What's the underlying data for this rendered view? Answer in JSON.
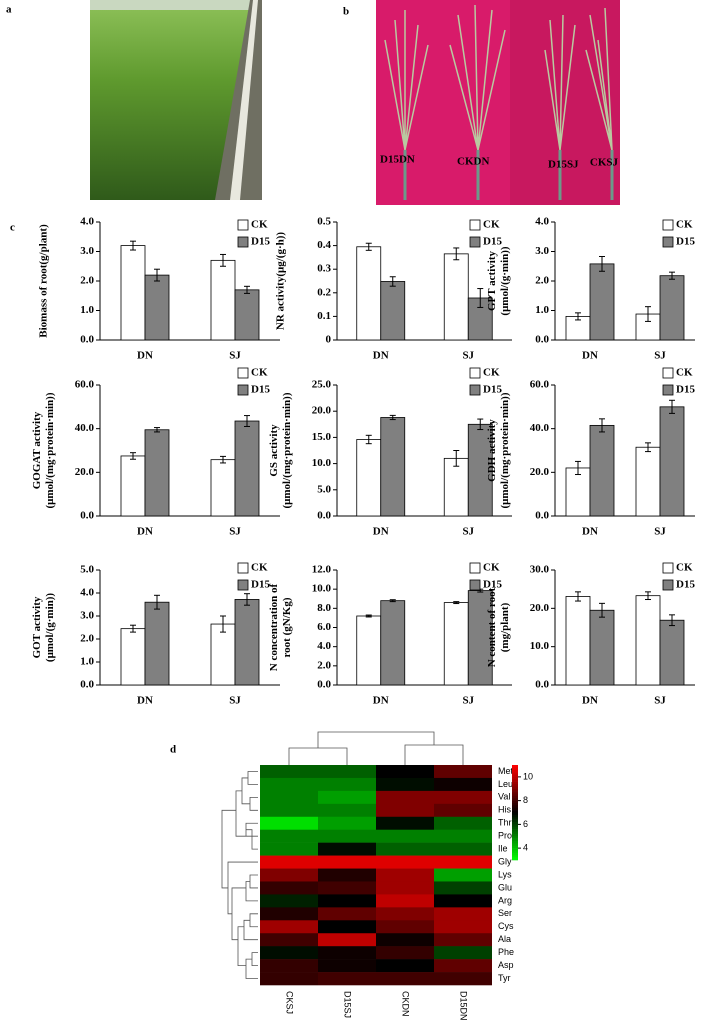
{
  "panel_labels": [
    "a",
    "b",
    "c",
    "d"
  ],
  "photo_labels": [
    "D15DN",
    "CKDN",
    "D15SJ",
    "CKSJ"
  ],
  "chart_data": [
    {
      "type": "bar",
      "y_label": [
        "Biomass of root(g/plant)"
      ],
      "categories": [
        "DN",
        "SJ"
      ],
      "series": [
        {
          "name": "CK",
          "color": "#ffffff",
          "values": [
            3.2,
            2.7
          ],
          "errors": [
            0.15,
            0.2
          ]
        },
        {
          "name": "D15",
          "color": "#808080",
          "values": [
            2.2,
            1.7
          ],
          "errors": [
            0.2,
            0.12
          ]
        }
      ],
      "ylim": [
        0,
        4
      ],
      "yticks": [
        {
          "value": 0,
          "label": "0.0"
        },
        {
          "value": 1,
          "label": "1.0"
        },
        {
          "value": 2,
          "label": "2.0"
        },
        {
          "value": 3,
          "label": "3.0"
        },
        {
          "value": 4,
          "label": "4.0"
        }
      ]
    },
    {
      "type": "bar",
      "y_label": [
        "NR activity(μg/(g·h))"
      ],
      "categories": [
        "DN",
        "SJ"
      ],
      "series": [
        {
          "name": "CK",
          "color": "#ffffff",
          "values": [
            0.395,
            0.365
          ],
          "errors": [
            0.015,
            0.025
          ]
        },
        {
          "name": "D15",
          "color": "#808080",
          "values": [
            0.248,
            0.178
          ],
          "errors": [
            0.02,
            0.04
          ]
        }
      ],
      "ylim": [
        0,
        0.5
      ],
      "yticks": [
        0,
        0.1,
        0.2,
        0.3,
        0.4,
        0.5
      ]
    },
    {
      "type": "bar",
      "y_label": [
        "GPT activity",
        "(μmol/(g·min))"
      ],
      "categories": [
        "DN",
        "SJ"
      ],
      "series": [
        {
          "name": "CK",
          "color": "#ffffff",
          "values": [
            0.8,
            0.88
          ],
          "errors": [
            0.12,
            0.25
          ]
        },
        {
          "name": "D15",
          "color": "#808080",
          "values": [
            2.58,
            2.18
          ],
          "errors": [
            0.25,
            0.12
          ]
        }
      ],
      "ylim": [
        0,
        4
      ],
      "yticks": [
        {
          "value": 0,
          "label": "0.0"
        },
        {
          "value": 1,
          "label": "1.0"
        },
        {
          "value": 2,
          "label": "2.0"
        },
        {
          "value": 3,
          "label": "3.0"
        },
        {
          "value": 4,
          "label": "4.0"
        }
      ]
    },
    {
      "type": "bar",
      "y_label": [
        "GOGAT activity",
        "(μmol/(mg·protein·min))"
      ],
      "categories": [
        "DN",
        "SJ"
      ],
      "series": [
        {
          "name": "CK",
          "color": "#ffffff",
          "values": [
            27.5,
            25.8
          ],
          "errors": [
            1.5,
            1.5
          ]
        },
        {
          "name": "D15",
          "color": "#808080",
          "values": [
            39.5,
            43.5
          ],
          "errors": [
            1,
            2.5
          ]
        }
      ],
      "ylim": [
        0,
        60
      ],
      "yticks": [
        {
          "value": 0,
          "label": "0.0"
        },
        {
          "value": 20,
          "label": "20.0"
        },
        {
          "value": 40,
          "label": "40.0"
        },
        {
          "value": 60,
          "label": "60.0"
        }
      ]
    },
    {
      "type": "bar",
      "y_label": [
        "GS activity",
        "(μmol/(mg·protein·min))"
      ],
      "categories": [
        "DN",
        "SJ"
      ],
      "series": [
        {
          "name": "CK",
          "color": "#ffffff",
          "values": [
            14.6,
            11.0
          ],
          "errors": [
            0.8,
            1.5
          ]
        },
        {
          "name": "D15",
          "color": "#808080",
          "values": [
            18.8,
            17.5
          ],
          "errors": [
            0.4,
            1
          ]
        }
      ],
      "ylim": [
        0,
        25
      ],
      "yticks": [
        {
          "value": 0,
          "label": "0.0"
        },
        {
          "value": 5,
          "label": "5.0"
        },
        {
          "value": 10,
          "label": "10.0"
        },
        {
          "value": 15,
          "label": "15.0"
        },
        {
          "value": 20,
          "label": "20.0"
        },
        {
          "value": 25,
          "label": "25.0"
        }
      ]
    },
    {
      "type": "bar",
      "y_label": [
        "GDH activity",
        "(μmol/(mg·protein·min))"
      ],
      "categories": [
        "DN",
        "SJ"
      ],
      "series": [
        {
          "name": "CK",
          "color": "#ffffff",
          "values": [
            22,
            31.5
          ],
          "errors": [
            3,
            2
          ]
        },
        {
          "name": "D15",
          "color": "#808080",
          "values": [
            41.5,
            50
          ],
          "errors": [
            3,
            3
          ]
        }
      ],
      "ylim": [
        0,
        60
      ],
      "yticks": [
        {
          "value": 0,
          "label": "0.0"
        },
        {
          "value": 20,
          "label": "20.0"
        },
        {
          "value": 40,
          "label": "40.0"
        },
        {
          "value": 60,
          "label": "60.0"
        }
      ]
    },
    {
      "type": "bar",
      "y_label": [
        "GOT activity",
        "(μmol/(g·min))"
      ],
      "categories": [
        "DN",
        "SJ"
      ],
      "series": [
        {
          "name": "CK",
          "color": "#ffffff",
          "values": [
            2.45,
            2.65
          ],
          "errors": [
            0.15,
            0.35
          ]
        },
        {
          "name": "D15",
          "color": "#808080",
          "values": [
            3.6,
            3.72
          ],
          "errors": [
            0.3,
            0.25
          ]
        }
      ],
      "ylim": [
        0,
        5
      ],
      "yticks": [
        {
          "value": 0,
          "label": "0.0"
        },
        {
          "value": 1,
          "label": "1.0"
        },
        {
          "value": 2,
          "label": "2.0"
        },
        {
          "value": 3,
          "label": "3.0"
        },
        {
          "value": 4,
          "label": "4.0"
        },
        {
          "value": 5,
          "label": "5.0"
        }
      ]
    },
    {
      "type": "bar",
      "y_label": [
        "N concentration of",
        "root (gN/Kg)"
      ],
      "categories": [
        "DN",
        "SJ"
      ],
      "series": [
        {
          "name": "CK",
          "color": "#ffffff",
          "values": [
            7.2,
            8.6
          ],
          "errors": [
            0.1,
            0.1
          ]
        },
        {
          "name": "D15",
          "color": "#808080",
          "values": [
            8.8,
            9.85
          ],
          "errors": [
            0.1,
            0.15
          ]
        }
      ],
      "ylim": [
        0,
        12
      ],
      "yticks": [
        {
          "value": 0,
          "label": "0.0"
        },
        {
          "value": 2,
          "label": "2.0"
        },
        {
          "value": 4,
          "label": "4.0"
        },
        {
          "value": 6,
          "label": "6.0"
        },
        {
          "value": 8,
          "label": "8.0"
        },
        {
          "value": 10,
          "label": "10.0"
        },
        {
          "value": 12,
          "label": "12.0"
        }
      ]
    },
    {
      "type": "bar",
      "y_label": [
        "N content of root",
        "(mg/plant)"
      ],
      "categories": [
        "DN",
        "SJ"
      ],
      "series": [
        {
          "name": "CK",
          "color": "#ffffff",
          "values": [
            23.1,
            23.3
          ],
          "errors": [
            1.2,
            1
          ]
        },
        {
          "name": "D15",
          "color": "#808080",
          "values": [
            19.5,
            16.9
          ],
          "errors": [
            1.8,
            1.4
          ]
        }
      ],
      "ylim": [
        0,
        30
      ],
      "yticks": [
        {
          "value": 0,
          "label": "0.0"
        },
        {
          "value": 10,
          "label": "10.0"
        },
        {
          "value": 20,
          "label": "20.0"
        },
        {
          "value": 30,
          "label": "30.0"
        }
      ]
    },
    {
      "type": "heatmap",
      "rows": [
        "Met",
        "Leu",
        "Val",
        "His",
        "Thr",
        "Pro",
        "Ile",
        "Gly",
        "Lys",
        "Glu",
        "Arg",
        "Ser",
        "Cys",
        "Ala",
        "Phe",
        "Asp",
        "Tyr"
      ],
      "columns": [
        "CKSJ",
        "D15SJ",
        "CKDN",
        "D15DN"
      ],
      "values": [
        [
          5.5,
          5.5,
          7,
          8.5
        ],
        [
          5,
          5,
          6.8,
          7.2
        ],
        [
          5,
          4.5,
          9,
          9
        ],
        [
          5,
          5,
          9,
          8.5
        ],
        [
          3.5,
          4.5,
          6.8,
          5.5
        ],
        [
          5,
          5,
          5,
          5
        ],
        [
          5,
          6.8,
          5.5,
          5.5
        ],
        [
          10.5,
          10.5,
          10.5,
          10.5
        ],
        [
          9,
          7.5,
          9.5,
          4.5
        ],
        [
          7.8,
          8,
          9.5,
          6
        ],
        [
          6.5,
          7,
          10,
          7
        ],
        [
          7.5,
          8.5,
          9,
          9.5
        ],
        [
          9.5,
          7,
          8.5,
          9.5
        ],
        [
          8,
          10,
          7.2,
          8.5
        ],
        [
          6.8,
          7.2,
          7.8,
          6
        ],
        [
          7.8,
          7.2,
          7,
          8.5
        ],
        [
          7.8,
          8,
          8,
          8
        ]
      ],
      "clim": [
        3,
        11
      ],
      "colorbar_ticks": [
        4,
        6,
        8,
        10
      ]
    }
  ]
}
